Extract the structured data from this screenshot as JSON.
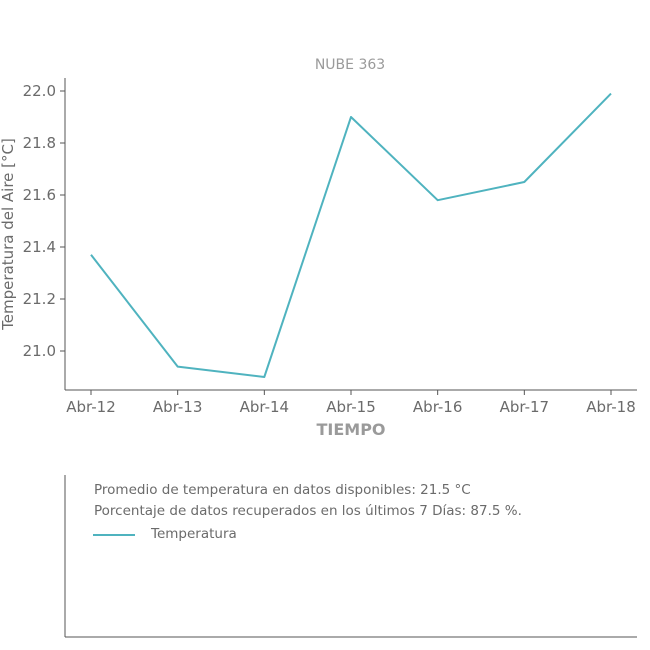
{
  "chart_data": {
    "type": "line",
    "title": "NUBE 363",
    "xlabel": "TIEMPO",
    "ylabel": "Temperatura del Aire [°C]",
    "categories": [
      "Abr-12",
      "Abr-13",
      "Abr-14",
      "Abr-15",
      "Abr-16",
      "Abr-17",
      "Abr-18"
    ],
    "series": [
      {
        "name": "Temperatura",
        "color": "#4fb3bf",
        "values": [
          21.37,
          20.94,
          20.9,
          21.9,
          21.58,
          21.65,
          21.99
        ]
      }
    ],
    "yticks": [
      "21.0",
      "21.2",
      "21.4",
      "21.6",
      "21.8",
      "22.0"
    ],
    "ylim": [
      20.85,
      22.05
    ],
    "grid": false,
    "legend_position": "bottom"
  },
  "notes": {
    "line1": "Promedio de temperatura en datos disponibles: 21.5 °C",
    "line2": "Porcentaje de datos recuperados en los últimos 7 Días: 87.5 %."
  }
}
